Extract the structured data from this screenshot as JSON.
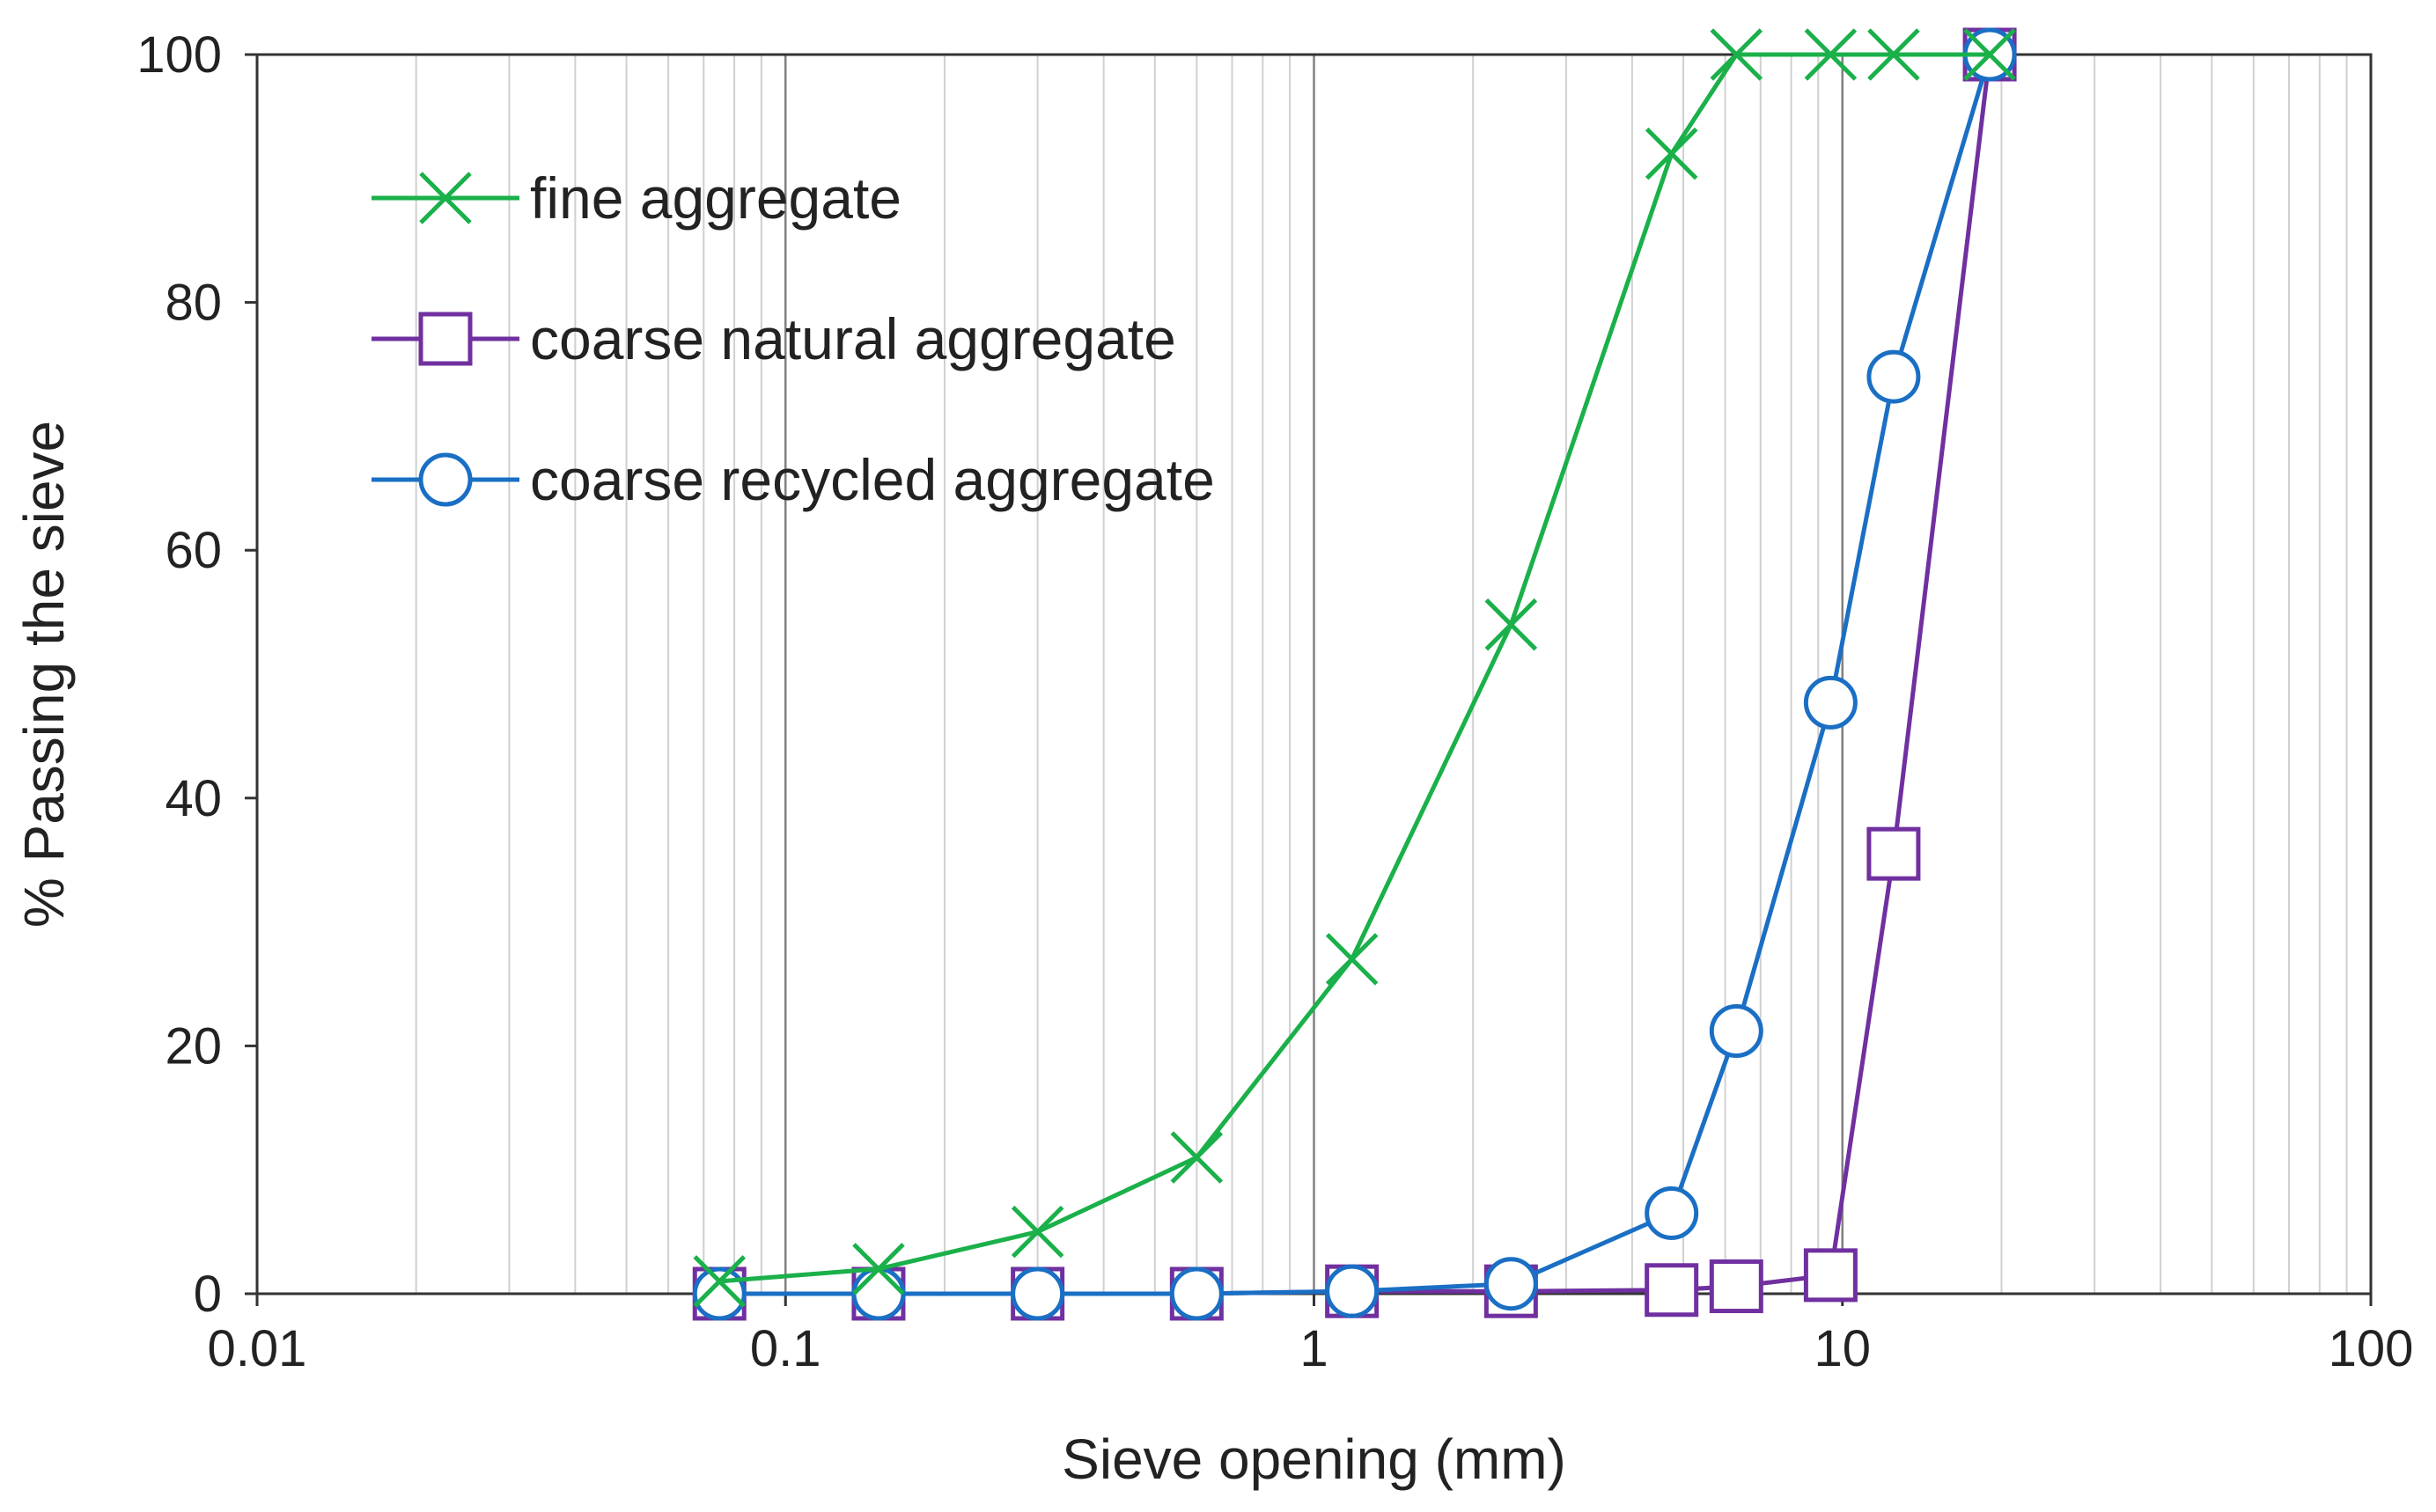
{
  "chart_data": {
    "type": "line",
    "xlabel": "Sieve opening (mm)",
    "ylabel": "% Passing the sieve",
    "x_scale": "log",
    "xlim": [
      0.01,
      100
    ],
    "ylim": [
      0,
      100
    ],
    "x_ticks": [
      0.01,
      0.1,
      1,
      10,
      100
    ],
    "x_tick_labels": [
      "0.01",
      "0.1",
      "1",
      "10",
      "100"
    ],
    "y_ticks": [
      0,
      20,
      40,
      60,
      80,
      100
    ],
    "y_tick_labels": [
      "0",
      "20",
      "40",
      "60",
      "80",
      "100"
    ],
    "grid": {
      "x_major": true,
      "x_minor": true,
      "y": false
    },
    "legend_position": "top-left",
    "series": [
      {
        "name": "fine aggregate",
        "color": "#1ab04a",
        "marker": "x",
        "x": [
          0.075,
          0.15,
          0.3,
          0.6,
          1.18,
          2.36,
          4.75,
          6.3,
          9.5,
          12.5,
          19
        ],
        "y": [
          1,
          2,
          5,
          11,
          27,
          54,
          92,
          100,
          100,
          100,
          100
        ]
      },
      {
        "name": "coarse natural aggregate",
        "color": "#7030a0",
        "marker": "square",
        "x": [
          0.075,
          0.15,
          0.3,
          0.6,
          1.18,
          2.36,
          4.75,
          6.3,
          9.5,
          12.5,
          19
        ],
        "y": [
          0,
          0,
          0,
          0,
          0.2,
          0.2,
          0.3,
          0.6,
          1.5,
          35.5,
          100
        ]
      },
      {
        "name": "coarse recycled aggregate",
        "color": "#1a6fc4",
        "marker": "circle",
        "x": [
          0.075,
          0.15,
          0.3,
          0.6,
          1.18,
          2.36,
          4.75,
          6.3,
          9.5,
          12.5,
          19
        ],
        "y": [
          0,
          0,
          0,
          0,
          0.2,
          0.8,
          6.5,
          21.2,
          47.7,
          74,
          100
        ]
      }
    ]
  }
}
